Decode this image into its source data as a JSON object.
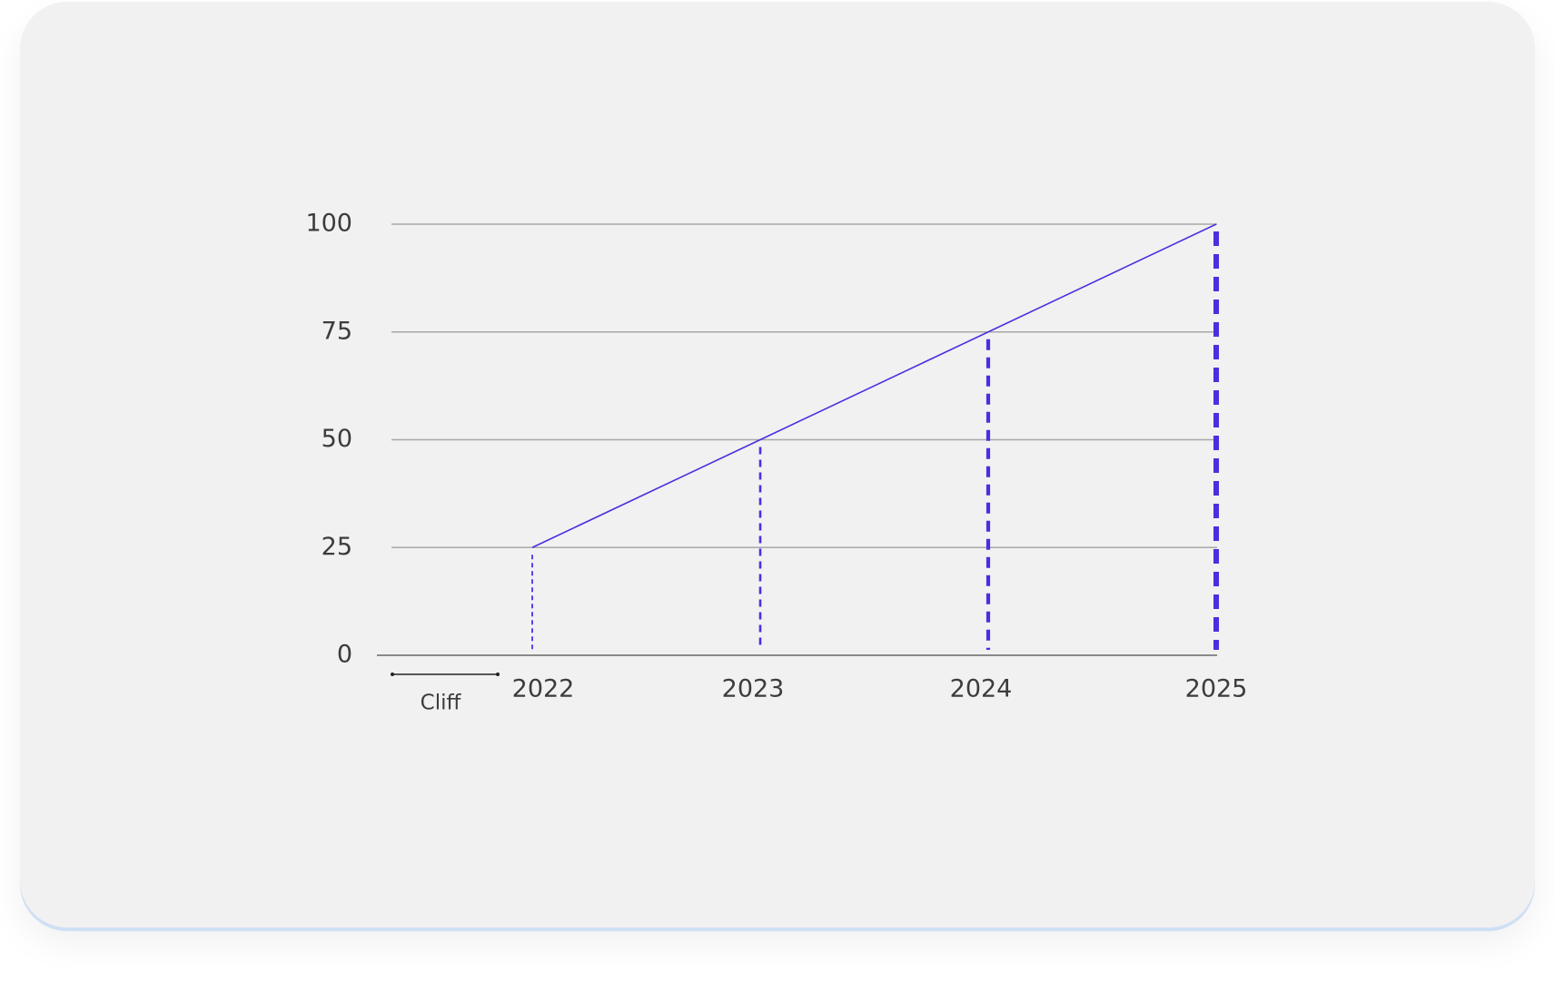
{
  "chart_data": {
    "type": "line",
    "categories": [
      "2022",
      "2023",
      "2024",
      "2025"
    ],
    "values": [
      25,
      50,
      75,
      100
    ],
    "color": "#4b2ee0",
    "ylim": [
      0,
      100
    ],
    "yticks": [
      0,
      25,
      50,
      75,
      100
    ],
    "grid": true,
    "annotation": "Cliff"
  }
}
